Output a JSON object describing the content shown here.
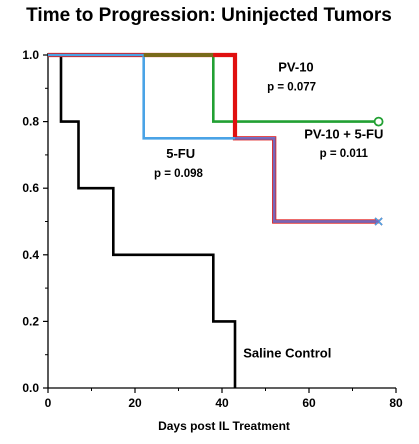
{
  "chart_data": {
    "type": "line",
    "step": true,
    "title": "Time to Progression: Uninjected Tumors",
    "xlabel": "Days post IL Treatment",
    "ylabel": "",
    "xlim": [
      0,
      80
    ],
    "ylim": [
      0,
      1.0
    ],
    "x_ticks": [
      0,
      20,
      40,
      60,
      80
    ],
    "x_tick_labels": [
      "0",
      "20",
      "40",
      "60",
      "80"
    ],
    "y_ticks": [
      0,
      0.2,
      0.4,
      0.6,
      0.8,
      1.0
    ],
    "y_tick_labels": [
      "0.0",
      "0.2",
      "0.4",
      "0.6",
      "0.8",
      "1.0"
    ],
    "grid": false,
    "legend": "none",
    "series": [
      {
        "key": "saline",
        "color": "#000000",
        "points": [
          [
            0,
            1.0
          ],
          [
            3,
            1.0
          ],
          [
            3,
            0.8
          ],
          [
            7,
            0.8
          ],
          [
            7,
            0.6
          ],
          [
            15,
            0.6
          ],
          [
            15,
            0.4
          ],
          [
            38,
            0.4
          ],
          [
            38,
            0.2
          ],
          [
            43,
            0.2
          ],
          [
            43,
            0.0
          ]
        ],
        "end_marker": "none"
      },
      {
        "key": "pv10",
        "color": "#22a033",
        "points": [
          [
            0,
            1.0
          ],
          [
            38,
            1.0
          ],
          [
            38,
            0.8
          ],
          [
            76,
            0.8
          ]
        ],
        "end_marker": "circle"
      },
      {
        "key": "combo",
        "color": "#e01010",
        "points": [
          [
            0,
            1.0
          ],
          [
            43,
            1.0
          ],
          [
            43,
            0.75
          ],
          [
            52,
            0.75
          ],
          [
            52,
            0.5
          ],
          [
            76,
            0.5
          ]
        ],
        "end_marker": "x"
      },
      {
        "key": "fu5",
        "color": "#4aa3e6",
        "points": [
          [
            0,
            1.0
          ],
          [
            22,
            1.0
          ],
          [
            22,
            0.75
          ],
          [
            52,
            0.75
          ],
          [
            52,
            0.5
          ],
          [
            76,
            0.5
          ]
        ],
        "end_marker": "x"
      },
      {
        "key": "overlap_purple",
        "color": "#7a63b8",
        "points": [
          [
            43,
            0.75
          ],
          [
            52,
            0.75
          ],
          [
            52,
            0.5
          ],
          [
            76,
            0.5
          ]
        ],
        "end_marker": "none"
      }
    ],
    "annotations": [
      {
        "key": "pv10_label",
        "text": "PV-10",
        "x": 57,
        "y": 0.95,
        "class": "anno"
      },
      {
        "key": "pv10_p",
        "text": "p = 0.077",
        "x": 56,
        "y": 0.893,
        "class": "anno-p"
      },
      {
        "key": "combo_label",
        "text": "PV-10 + 5-FU",
        "x": 68,
        "y": 0.75,
        "class": "anno"
      },
      {
        "key": "combo_p",
        "text": "p = 0.011",
        "x": 68,
        "y": 0.693,
        "class": "anno-p"
      },
      {
        "key": "fu5_label",
        "text": "5-FU",
        "x": 30.5,
        "y": 0.69,
        "class": "anno"
      },
      {
        "key": "fu5_p",
        "text": "p = 0.098",
        "x": 30,
        "y": 0.633,
        "class": "anno-p"
      },
      {
        "key": "saline_label",
        "text": "Saline Control",
        "x": 55,
        "y": 0.092,
        "class": "anno"
      }
    ]
  }
}
